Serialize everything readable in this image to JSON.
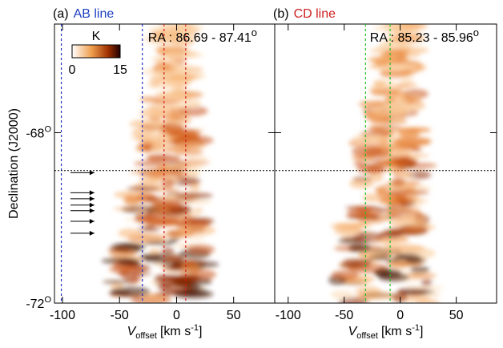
{
  "chart_data": [
    {
      "type": "heatmap",
      "panel_label": "(a)",
      "title": "AB line",
      "title_color": "#2040c0",
      "ra_label": "RA : 86.69 -  87.41",
      "ra_sup": "o",
      "ylabel": "Declination (J2000)",
      "xlabel": {
        "v": "V",
        "sub": "offset",
        "unit": "[km s",
        "sup": "-1",
        "close": "]"
      },
      "xlim": [
        -107,
        86
      ],
      "ylim": [
        -72,
        -65.45
      ],
      "xticks": [
        -100,
        -50,
        0,
        50
      ],
      "yticks": [
        {
          "value": -72,
          "label": "-72",
          "sup": "O"
        },
        {
          "value": -68,
          "label": "-68",
          "sup": "O"
        }
      ],
      "vlines": [
        {
          "value": -101,
          "color": "#2030c0"
        },
        {
          "value": -30,
          "color": "#2030c0"
        },
        {
          "value": -11,
          "color": "#d02020"
        },
        {
          "value": 8,
          "color": "#d02020"
        }
      ],
      "hline": -68.89,
      "arrows": [
        -68.94,
        -69.41,
        -69.55,
        -69.7,
        -69.83,
        -70.08,
        -70.36
      ],
      "arrow_x": [
        -93,
        -72
      ],
      "colorbar": {
        "label": "K",
        "ticks": [
          0,
          15
        ]
      }
    },
    {
      "type": "heatmap",
      "panel_label": "(b)",
      "title": "CD line",
      "title_color": "#d02020",
      "ra_label": "RA : 85.23 -  85.96",
      "ra_sup": "o",
      "xlabel": {
        "v": "V",
        "sub": "offset",
        "unit": "[km s",
        "sup": "-1",
        "close": "]"
      },
      "xlim": [
        -112,
        86
      ],
      "ylim": [
        -72,
        -65.45
      ],
      "xticks": [
        -100,
        -50,
        0,
        50
      ],
      "vlines": [
        {
          "value": -31,
          "color": "#20c020"
        },
        {
          "value": -9,
          "color": "#20c020"
        }
      ]
    }
  ]
}
